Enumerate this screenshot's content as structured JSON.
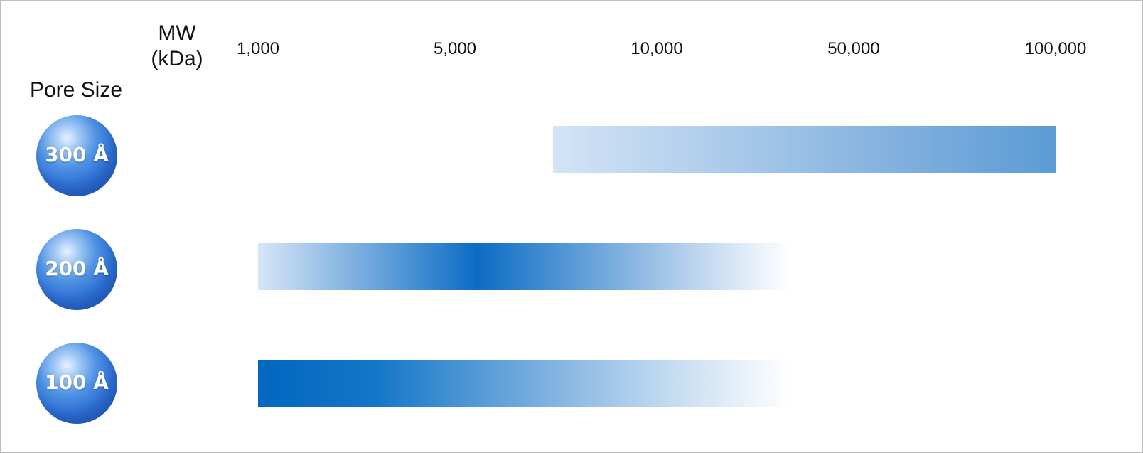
{
  "pore_title": "Pore Size",
  "chart_data": {
    "type": "bar",
    "title": "",
    "xlabel": "MW (kDa)",
    "xlabel_lines": [
      "MW",
      "(kDa)"
    ],
    "ylabel": "Pore Size",
    "x_axis": {
      "type": "category-log",
      "ticks": [
        1000,
        5000,
        10000,
        50000,
        100000
      ],
      "tick_labels": [
        "1,000",
        "5,000",
        "10,000",
        "50,000",
        "100,000"
      ],
      "position": "top"
    },
    "grid": false,
    "legend": "none",
    "series": [
      {
        "name": "300 Å",
        "range": [
          7000,
          100000
        ],
        "gradient": [
          {
            "at": 0.0,
            "color": "#d3e4f5",
            "opacity": 1.0
          },
          {
            "at": 0.25,
            "color": "#b7d2ee",
            "opacity": 1.0
          },
          {
            "at": 0.7,
            "color": "#7fafdd",
            "opacity": 1.0
          },
          {
            "at": 1.0,
            "color": "#5c9bd4",
            "opacity": 1.0
          }
        ]
      },
      {
        "name": "200 Å",
        "range": [
          1000,
          30000
        ],
        "gradient": [
          {
            "at": 0.0,
            "color": "#d6e6f7",
            "opacity": 1.0
          },
          {
            "at": 0.1,
            "color": "#a6c8ea",
            "opacity": 1.0
          },
          {
            "at": 0.41,
            "color": "#0b6cc4",
            "opacity": 1.0
          },
          {
            "at": 0.75,
            "color": "#9ec2e7",
            "opacity": 1.0
          },
          {
            "at": 1.0,
            "color": "#ffffff",
            "opacity": 0.9
          }
        ]
      },
      {
        "name": "100 Å",
        "range": [
          1000,
          30000
        ],
        "gradient": [
          {
            "at": 0.0,
            "color": "#0067c0",
            "opacity": 1.0
          },
          {
            "at": 0.22,
            "color": "#1476c8",
            "opacity": 1.0
          },
          {
            "at": 0.6,
            "color": "#91bce4",
            "opacity": 1.0
          },
          {
            "at": 1.0,
            "color": "#ffffff",
            "opacity": 0.9
          }
        ]
      }
    ],
    "colors": {
      "sphere_base": "#2f6fd3",
      "sphere_highlight": "#e8f2ff",
      "text": "#111111",
      "border": "#bdbdbd"
    }
  }
}
